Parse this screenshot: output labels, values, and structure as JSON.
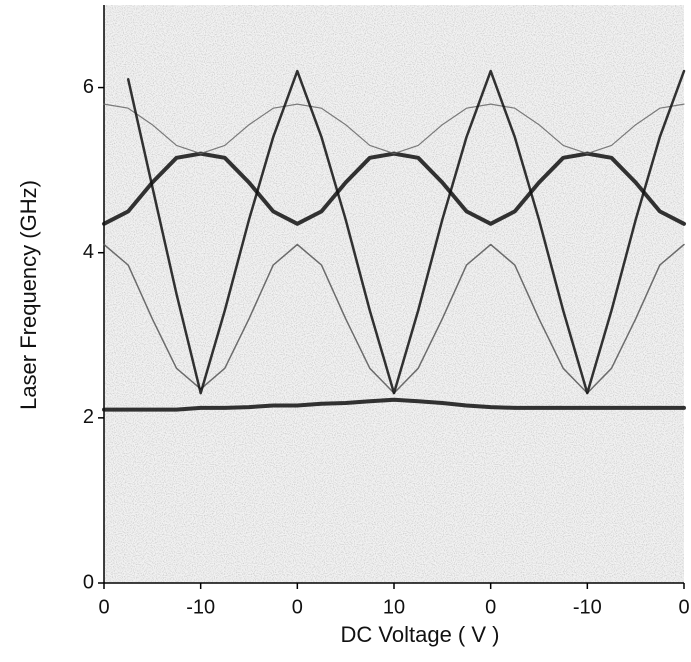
{
  "chart_data": {
    "type": "line",
    "x_label": "DC  Voltage ( V )",
    "y_label": "Laser  Frequency  (GHz)",
    "categories": [
      "0",
      null,
      null,
      null,
      "-10",
      null,
      null,
      null,
      "0",
      null,
      null,
      null,
      "10",
      null,
      null,
      null,
      "0",
      null,
      null,
      null,
      "-10",
      null,
      null,
      null,
      "0"
    ],
    "ylim": [
      0,
      7
    ],
    "yticks": [
      0,
      2,
      4,
      6
    ],
    "series": [
      {
        "color": "#111111",
        "width": 4,
        "values": [
          2.1,
          2.1,
          2.1,
          2.1,
          2.12,
          2.12,
          2.13,
          2.15,
          2.15,
          2.17,
          2.18,
          2.2,
          2.22,
          2.2,
          2.18,
          2.15,
          2.13,
          2.12,
          2.12,
          2.12,
          2.12,
          2.12,
          2.12,
          2.12,
          2.12
        ]
      },
      {
        "color": "#111111",
        "width": 4,
        "values": [
          4.35,
          4.5,
          4.85,
          5.15,
          5.2,
          5.15,
          4.85,
          4.5,
          4.35,
          4.5,
          4.85,
          5.15,
          5.2,
          5.15,
          4.85,
          4.5,
          4.35,
          4.5,
          4.85,
          5.15,
          5.2,
          5.15,
          4.85,
          4.5,
          4.35
        ]
      },
      {
        "color": "#666666",
        "width": 1.2,
        "values": [
          5.8,
          5.75,
          5.55,
          5.3,
          5.2,
          5.3,
          5.55,
          5.75,
          5.8,
          5.75,
          5.55,
          5.3,
          5.2,
          5.3,
          5.55,
          5.75,
          5.8,
          5.75,
          5.55,
          5.3,
          5.2,
          5.3,
          5.55,
          5.75,
          5.8
        ]
      },
      {
        "color": "#555555",
        "width": 1.5,
        "values": [
          4.1,
          3.85,
          3.2,
          2.6,
          2.35,
          2.6,
          3.2,
          3.85,
          4.1,
          3.85,
          3.2,
          2.6,
          2.3,
          2.6,
          3.2,
          3.85,
          4.1,
          3.85,
          3.2,
          2.6,
          2.3,
          2.6,
          3.2,
          3.85,
          4.1
        ]
      },
      {
        "color": "#111111",
        "width": 2.5,
        "values": [
          null,
          6.1,
          4.8,
          3.5,
          2.3,
          3.3,
          4.4,
          5.4,
          6.2,
          5.4,
          4.4,
          3.3,
          2.3,
          3.3,
          4.4,
          5.4,
          6.2,
          5.4,
          4.4,
          3.3,
          2.3,
          3.3,
          4.4,
          5.4,
          6.2
        ]
      }
    ]
  }
}
